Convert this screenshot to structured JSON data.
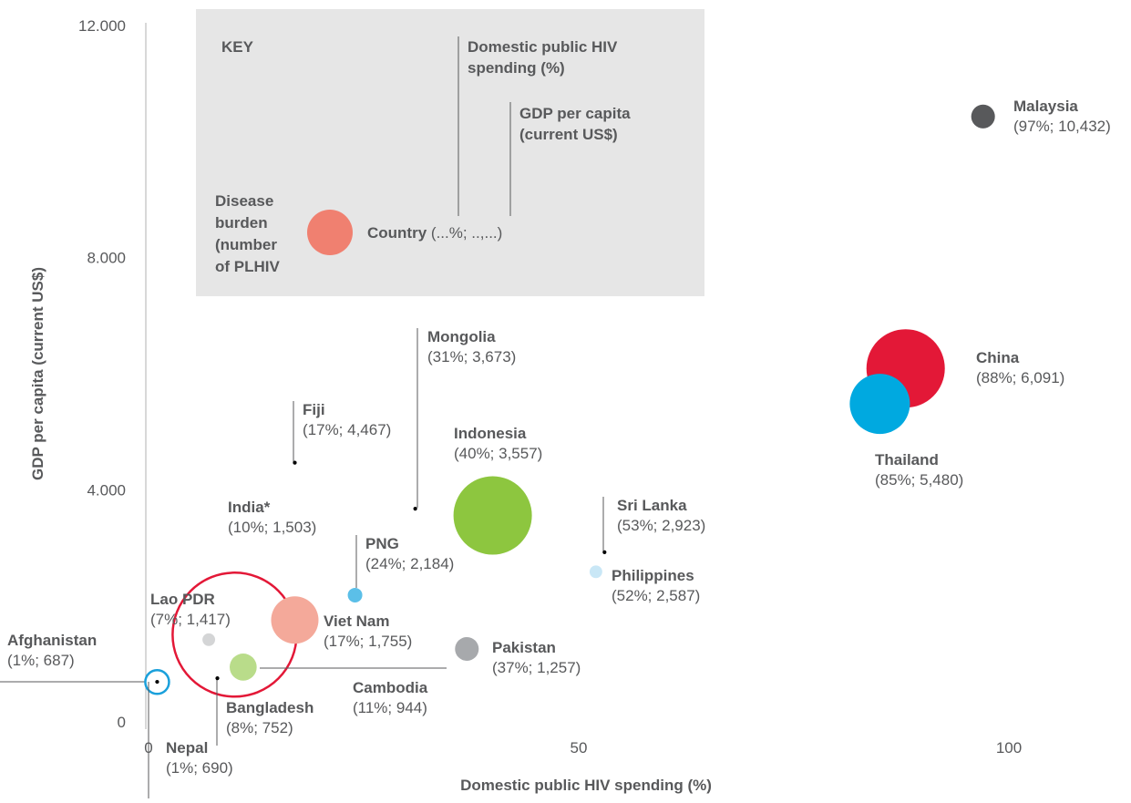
{
  "chart_data": {
    "type": "bubble",
    "xlabel": "Domestic public HIV spending (%)",
    "ylabel": "GDP per capita (current US$)",
    "xlim": [
      0,
      100
    ],
    "ylim": [
      0,
      12000
    ],
    "xticks": [
      0,
      50,
      100
    ],
    "yticks": [
      {
        "value": 0,
        "label": "0"
      },
      {
        "value": 4000,
        "label": "4.000"
      },
      {
        "value": 8000,
        "label": "8.000"
      },
      {
        "value": 12000,
        "label": "12.000"
      }
    ],
    "categories": [
      "Malaysia",
      "China",
      "Thailand",
      "Indonesia",
      "Mongolia",
      "Fiji",
      "India*",
      "PNG",
      "Sri Lanka",
      "Philippines",
      "Lao PDR",
      "Viet Nam",
      "Pakistan",
      "Cambodia",
      "Bangladesh",
      "Afghanistan",
      "Nepal"
    ],
    "x": [
      97,
      88,
      85,
      40,
      31,
      17,
      10,
      24,
      53,
      52,
      7,
      17,
      37,
      11,
      8,
      1,
      1
    ],
    "values": [
      10432,
      6091,
      5480,
      3557,
      3673,
      4467,
      1503,
      2184,
      2923,
      2587,
      1417,
      1755,
      1257,
      944,
      752,
      687,
      690
    ],
    "sizes": [
      77,
      840,
      495,
      840,
      2,
      2,
      2100,
      29,
      2,
      22,
      22,
      307,
      77,
      100,
      2,
      77,
      2
    ],
    "value_labels": [
      "(97%; 10,432)",
      "(88%; 6,091)",
      "(85%; 5,480)",
      "(40%; 3,557)",
      "(31%; 3,673)",
      "(17%; 4,467)",
      "(10%; 1,503)",
      "(24%; 2,184)",
      "(53%; 2,923)",
      "(52%; 2,587)",
      "(7%; 1,417)",
      "(17%; 1,755)",
      "(37%; 1,257)",
      "(11%; 944)",
      "(8%; 752)",
      "(1%; 687)",
      "(1%; 690)"
    ],
    "colors": [
      "#58595b",
      "#e31837",
      "#00a9e0",
      "#8dc63f",
      "#000000",
      "#000000",
      "#e31837",
      "#5bbfe8",
      "#000000",
      "#c9e7f6",
      "#d4d5d6",
      "#f4a99a",
      "#a7a9ac",
      "#b9dc8a",
      "#000000",
      "#1aa0db",
      "#000000"
    ],
    "styles": [
      "fill",
      "fill",
      "fill",
      "fill",
      "fill",
      "fill",
      "ring",
      "fill",
      "fill",
      "fill",
      "fill",
      "fill",
      "fill",
      "fill",
      "fill",
      "ring",
      "fill"
    ],
    "key": {
      "title": "KEY",
      "x_label": [
        "Domestic public HIV",
        "spending (%)"
      ],
      "y_label": [
        "GDP per capita",
        "(current US$)"
      ],
      "size_label": [
        "Disease",
        "burden",
        "(number",
        "of PLHIV"
      ],
      "country": "Country",
      "country_format": "(...%; ..,...)",
      "color": "#f08070"
    }
  }
}
